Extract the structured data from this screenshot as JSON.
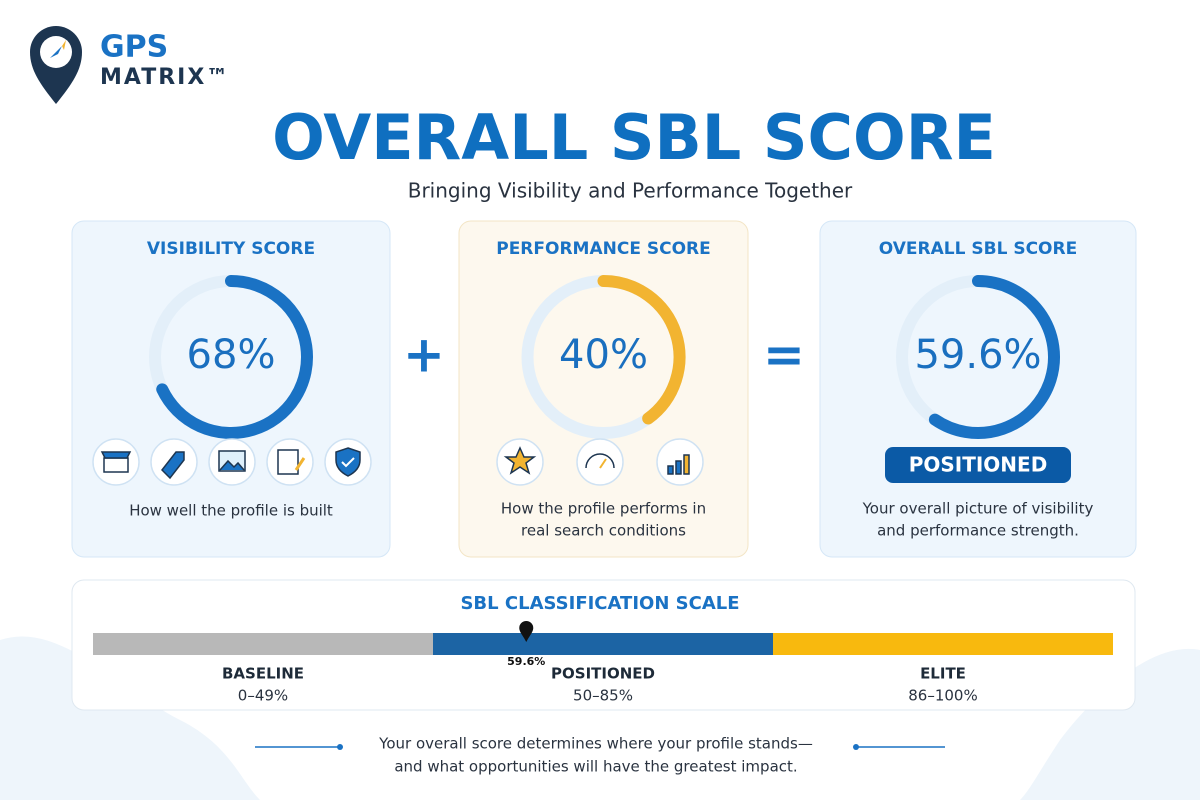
{
  "brand": {
    "line1": "GPS",
    "line2": "MATRIX™"
  },
  "header": {
    "title": "OVERALL SBL SCORE",
    "subtitle": "Bringing Visibility and Performance Together"
  },
  "cards": [
    {
      "title": "VISIBILITY SCORE",
      "value": 68,
      "value_label": "68%",
      "color": "#1a72c4",
      "description": [
        "How well the profile is built"
      ]
    },
    {
      "title": "PERFORMANCE SCORE",
      "value": 40,
      "value_label": "40%",
      "color": "#f2b431",
      "description": [
        "How the profile performs in",
        "real search conditions"
      ]
    },
    {
      "title": "OVERALL SBL SCORE",
      "value": 59.6,
      "value_label": "59.6%",
      "color": "#1a72c4",
      "badge": "POSITIONED",
      "description": [
        "Your overall picture of visibility",
        "and performance strength."
      ]
    }
  ],
  "operators": [
    "+",
    "="
  ],
  "scale": {
    "title": "SBL CLASSIFICATION SCALE",
    "marker": 59.6,
    "marker_label": "59.6%",
    "bands": [
      {
        "name": "BASELINE",
        "range": "0–49%",
        "start": 0,
        "end": 49,
        "color": "#b8b8b8"
      },
      {
        "name": "POSITIONED",
        "range": "50–85%",
        "start": 50,
        "end": 85,
        "color": "#1c64a4"
      },
      {
        "name": "ELITE",
        "range": "86–100%",
        "start": 86,
        "end": 100,
        "color": "#f8b90e"
      }
    ]
  },
  "footer": [
    "Your overall score determines where your profile stands—",
    "and what opportunities will have the greatest impact."
  ]
}
